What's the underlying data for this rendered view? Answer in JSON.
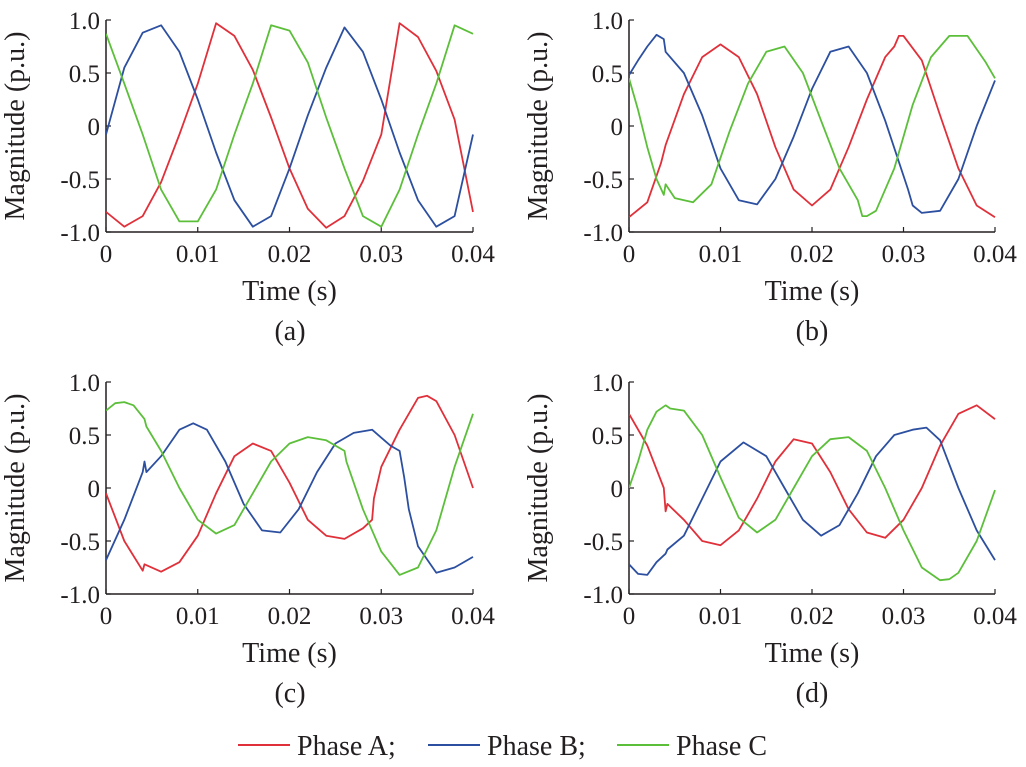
{
  "legend": [
    {
      "label": "Phase A;",
      "color": "#e0303a"
    },
    {
      "label": "Phase B;",
      "color": "#2c4fa0"
    },
    {
      "label": "Phase C",
      "color": "#5cbf3a"
    }
  ],
  "chart_data": [
    {
      "type": "line",
      "panel_label": "(a)",
      "xlabel": "Time (s)",
      "ylabel": "Magnitude (p.u.)",
      "xlim": [
        0,
        0.04
      ],
      "ylim": [
        -1.0,
        1.0
      ],
      "xticks": [
        "0",
        "0.01",
        "0.02",
        "0.03",
        "0.04"
      ],
      "yticks": [
        "-1.0",
        "-0.5",
        "0",
        "0.5",
        "1.0"
      ],
      "series": [
        {
          "name": "Phase A",
          "color": "#e0303a",
          "x": [
            0,
            0.002,
            0.004,
            0.006,
            0.008,
            0.01,
            0.012,
            0.014,
            0.016,
            0.018,
            0.02,
            0.022,
            0.024,
            0.026,
            0.028,
            0.03,
            0.032,
            0.034,
            0.036,
            0.038,
            0.04
          ],
          "y": [
            -0.81,
            -0.95,
            -0.85,
            -0.53,
            -0.08,
            0.4,
            0.97,
            0.85,
            0.53,
            0.08,
            -0.4,
            -0.78,
            -0.96,
            -0.85,
            -0.52,
            -0.08,
            0.97,
            0.84,
            0.52,
            0.06,
            -0.81
          ]
        },
        {
          "name": "Phase B",
          "color": "#2c4fa0",
          "x": [
            0,
            0.002,
            0.004,
            0.006,
            0.008,
            0.01,
            0.012,
            0.014,
            0.016,
            0.018,
            0.02,
            0.022,
            0.024,
            0.026,
            0.028,
            0.03,
            0.032,
            0.034,
            0.036,
            0.038,
            0.04
          ],
          "y": [
            -0.08,
            0.55,
            0.88,
            0.95,
            0.7,
            0.25,
            -0.25,
            -0.7,
            -0.95,
            -0.85,
            -0.4,
            0.1,
            0.55,
            0.93,
            0.7,
            0.25,
            -0.25,
            -0.7,
            -0.95,
            -0.85,
            -0.08
          ]
        },
        {
          "name": "Phase C",
          "color": "#5cbf3a",
          "x": [
            0,
            0.002,
            0.004,
            0.006,
            0.008,
            0.01,
            0.012,
            0.014,
            0.016,
            0.018,
            0.02,
            0.022,
            0.024,
            0.026,
            0.028,
            0.03,
            0.032,
            0.034,
            0.036,
            0.038,
            0.04
          ],
          "y": [
            0.87,
            0.4,
            -0.08,
            -0.6,
            -0.9,
            -0.9,
            -0.6,
            -0.08,
            0.4,
            0.95,
            0.9,
            0.6,
            0.08,
            -0.4,
            -0.85,
            -0.95,
            -0.6,
            -0.08,
            0.4,
            0.95,
            0.87
          ]
        }
      ]
    },
    {
      "type": "line",
      "panel_label": "(b)",
      "xlabel": "Time (s)",
      "ylabel": "Magnitude (p.u.)",
      "xlim": [
        0,
        0.04
      ],
      "ylim": [
        -1.0,
        1.0
      ],
      "xticks": [
        "0",
        "0.01",
        "0.02",
        "0.03",
        "0.04"
      ],
      "yticks": [
        "-1.0",
        "-0.5",
        "0",
        "0.5",
        "1.0"
      ],
      "series": [
        {
          "name": "Phase A",
          "color": "#e0303a",
          "x": [
            0,
            0.002,
            0.0035,
            0.004,
            0.006,
            0.008,
            0.01,
            0.012,
            0.014,
            0.016,
            0.018,
            0.02,
            0.022,
            0.024,
            0.026,
            0.028,
            0.029,
            0.0295,
            0.03,
            0.032,
            0.034,
            0.036,
            0.038,
            0.04
          ],
          "y": [
            -0.86,
            -0.72,
            -0.35,
            -0.18,
            0.3,
            0.65,
            0.77,
            0.65,
            0.3,
            -0.2,
            -0.6,
            -0.75,
            -0.6,
            -0.2,
            0.25,
            0.65,
            0.75,
            0.85,
            0.85,
            0.62,
            0.1,
            -0.4,
            -0.75,
            -0.86
          ]
        },
        {
          "name": "Phase B",
          "color": "#2c4fa0",
          "x": [
            0,
            0.001,
            0.002,
            0.003,
            0.0038,
            0.004,
            0.006,
            0.008,
            0.01,
            0.012,
            0.014,
            0.016,
            0.018,
            0.02,
            0.022,
            0.024,
            0.026,
            0.028,
            0.0305,
            0.031,
            0.032,
            0.034,
            0.036,
            0.038,
            0.04
          ],
          "y": [
            0.48,
            0.62,
            0.75,
            0.86,
            0.82,
            0.7,
            0.5,
            0.1,
            -0.4,
            -0.7,
            -0.74,
            -0.5,
            -0.1,
            0.35,
            0.7,
            0.75,
            0.5,
            0.05,
            -0.6,
            -0.75,
            -0.82,
            -0.8,
            -0.5,
            0.0,
            0.43
          ]
        },
        {
          "name": "Phase C",
          "color": "#5cbf3a",
          "x": [
            0,
            0.001,
            0.002,
            0.003,
            0.0038,
            0.004,
            0.005,
            0.007,
            0.009,
            0.011,
            0.013,
            0.015,
            0.017,
            0.019,
            0.021,
            0.023,
            0.025,
            0.0255,
            0.026,
            0.027,
            0.029,
            0.031,
            0.033,
            0.035,
            0.037,
            0.039,
            0.04
          ],
          "y": [
            0.45,
            0.15,
            -0.2,
            -0.5,
            -0.65,
            -0.55,
            -0.68,
            -0.72,
            -0.55,
            -0.05,
            0.4,
            0.7,
            0.75,
            0.5,
            0.05,
            -0.4,
            -0.7,
            -0.85,
            -0.85,
            -0.8,
            -0.4,
            0.2,
            0.65,
            0.85,
            0.85,
            0.6,
            0.45
          ]
        }
      ]
    },
    {
      "type": "line",
      "panel_label": "(c)",
      "xlabel": "Time (s)",
      "ylabel": "Magnitude (p.u.)",
      "xlim": [
        0,
        0.04
      ],
      "ylim": [
        -1.0,
        1.0
      ],
      "xticks": [
        "0",
        "0.01",
        "0.02",
        "0.03",
        "0.04"
      ],
      "yticks": [
        "-1.0",
        "-0.5",
        "0",
        "0.5",
        "1.0"
      ],
      "series": [
        {
          "name": "Phase A",
          "color": "#e0303a",
          "x": [
            0,
            0.002,
            0.004,
            0.0042,
            0.006,
            0.008,
            0.01,
            0.012,
            0.014,
            0.016,
            0.018,
            0.02,
            0.022,
            0.024,
            0.026,
            0.028,
            0.029,
            0.0292,
            0.03,
            0.032,
            0.034,
            0.035,
            0.036,
            0.038,
            0.04
          ],
          "y": [
            -0.05,
            -0.5,
            -0.78,
            -0.72,
            -0.79,
            -0.7,
            -0.45,
            -0.05,
            0.3,
            0.42,
            0.35,
            0.05,
            -0.3,
            -0.45,
            -0.48,
            -0.38,
            -0.3,
            -0.1,
            0.2,
            0.55,
            0.85,
            0.87,
            0.82,
            0.5,
            0.0
          ]
        },
        {
          "name": "Phase B",
          "color": "#2c4fa0",
          "x": [
            0,
            0.002,
            0.004,
            0.0042,
            0.0044,
            0.006,
            0.008,
            0.0095,
            0.011,
            0.013,
            0.015,
            0.017,
            0.019,
            0.021,
            0.023,
            0.025,
            0.027,
            0.029,
            0.031,
            0.032,
            0.0325,
            0.033,
            0.034,
            0.036,
            0.038,
            0.04
          ],
          "y": [
            -0.68,
            -0.3,
            0.15,
            0.25,
            0.15,
            0.3,
            0.55,
            0.61,
            0.55,
            0.25,
            -0.15,
            -0.4,
            -0.42,
            -0.2,
            0.15,
            0.42,
            0.52,
            0.55,
            0.4,
            0.35,
            0.1,
            -0.2,
            -0.55,
            -0.8,
            -0.75,
            -0.65
          ]
        },
        {
          "name": "Phase C",
          "color": "#5cbf3a",
          "x": [
            0,
            0.001,
            0.002,
            0.003,
            0.0042,
            0.0044,
            0.006,
            0.008,
            0.01,
            0.012,
            0.014,
            0.016,
            0.018,
            0.02,
            0.022,
            0.024,
            0.026,
            0.0262,
            0.028,
            0.03,
            0.032,
            0.034,
            0.036,
            0.038,
            0.04
          ],
          "y": [
            0.73,
            0.8,
            0.81,
            0.78,
            0.65,
            0.58,
            0.35,
            0.0,
            -0.3,
            -0.43,
            -0.35,
            -0.05,
            0.25,
            0.42,
            0.48,
            0.45,
            0.35,
            0.25,
            -0.2,
            -0.6,
            -0.82,
            -0.75,
            -0.4,
            0.2,
            0.7
          ]
        }
      ]
    },
    {
      "type": "line",
      "panel_label": "(d)",
      "xlabel": "Time (s)",
      "ylabel": "Magnitude (p.u.)",
      "xlim": [
        0,
        0.04
      ],
      "ylim": [
        -1.0,
        1.0
      ],
      "xticks": [
        "0",
        "0.01",
        "0.02",
        "0.03",
        "0.04"
      ],
      "yticks": [
        "-1.0",
        "-0.5",
        "0",
        "0.5",
        "1.0"
      ],
      "series": [
        {
          "name": "Phase A",
          "color": "#e0303a",
          "x": [
            0,
            0.002,
            0.0038,
            0.004,
            0.0042,
            0.006,
            0.008,
            0.01,
            0.012,
            0.014,
            0.016,
            0.018,
            0.02,
            0.022,
            0.024,
            0.026,
            0.028,
            0.03,
            0.032,
            0.034,
            0.036,
            0.038,
            0.04
          ],
          "y": [
            0.7,
            0.4,
            0.0,
            -0.22,
            -0.15,
            -0.3,
            -0.5,
            -0.54,
            -0.4,
            -0.1,
            0.25,
            0.46,
            0.42,
            0.15,
            -0.2,
            -0.42,
            -0.47,
            -0.3,
            0.0,
            0.4,
            0.7,
            0.78,
            0.65
          ]
        },
        {
          "name": "Phase B",
          "color": "#2c4fa0",
          "x": [
            0,
            0.001,
            0.002,
            0.003,
            0.004,
            0.0042,
            0.006,
            0.008,
            0.01,
            0.0125,
            0.015,
            0.017,
            0.019,
            0.021,
            0.023,
            0.025,
            0.027,
            0.029,
            0.031,
            0.0325,
            0.034,
            0.036,
            0.038,
            0.04
          ],
          "y": [
            -0.72,
            -0.81,
            -0.82,
            -0.7,
            -0.62,
            -0.58,
            -0.45,
            -0.1,
            0.25,
            0.43,
            0.3,
            0.0,
            -0.3,
            -0.45,
            -0.35,
            -0.05,
            0.3,
            0.5,
            0.55,
            0.57,
            0.45,
            0.0,
            -0.4,
            -0.68
          ]
        },
        {
          "name": "Phase C",
          "color": "#5cbf3a",
          "x": [
            0,
            0.001,
            0.002,
            0.003,
            0.004,
            0.0045,
            0.006,
            0.008,
            0.01,
            0.012,
            0.014,
            0.016,
            0.018,
            0.02,
            0.022,
            0.024,
            0.026,
            0.028,
            0.03,
            0.032,
            0.034,
            0.035,
            0.036,
            0.038,
            0.04
          ],
          "y": [
            0.0,
            0.25,
            0.55,
            0.72,
            0.78,
            0.75,
            0.73,
            0.5,
            0.1,
            -0.28,
            -0.42,
            -0.3,
            0.0,
            0.3,
            0.46,
            0.48,
            0.35,
            0.0,
            -0.4,
            -0.75,
            -0.87,
            -0.86,
            -0.8,
            -0.5,
            -0.02
          ]
        }
      ]
    }
  ]
}
